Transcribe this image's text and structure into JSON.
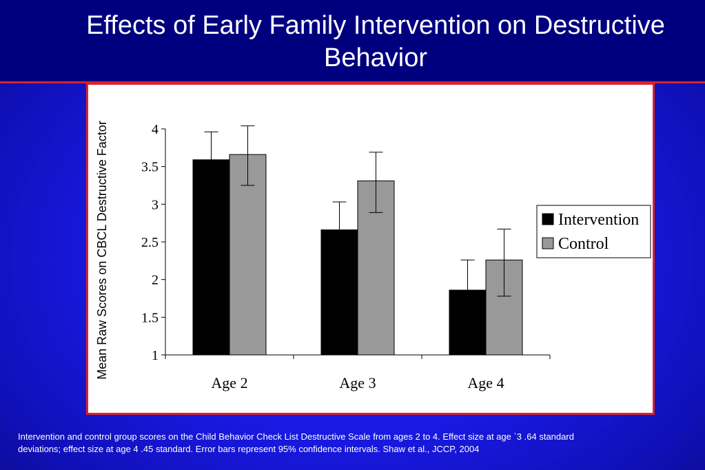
{
  "slide": {
    "title_line1": "Effects of Early Family Intervention on Destructive",
    "title_line2": "Behavior",
    "caption_line1": "Intervention and control group scores on the Child Behavior Check List Destructive Scale from ages 2 to 4. Effect size at age `3  .64 standard",
    "caption_line2": "deviations; effect size at age 4  .45 standard.  Error bars represent 95% confidence intervals.  Shaw et al., JCCP, 2004"
  },
  "colors": {
    "title_band": "#00007f",
    "background": "#1a1ae6",
    "accent_rule": "#d8232a",
    "intervention": "#000000",
    "control": "#999999"
  },
  "chart_data": {
    "type": "bar",
    "ylabel": "Mean Raw Scores on CBCL Destructive Factor",
    "xlabel": "",
    "categories": [
      "Age 2",
      "Age 3",
      "Age 4"
    ],
    "ylim": [
      1,
      4
    ],
    "yticks": [
      1,
      1.5,
      2,
      2.5,
      3,
      3.5,
      4
    ],
    "ytick_labels": [
      "1",
      "1.5",
      "2",
      "2.5",
      "3",
      "3.5",
      "4"
    ],
    "grid": false,
    "legend_position": "right",
    "series": [
      {
        "name": "Intervention",
        "color": "#000000",
        "values": [
          3.59,
          2.66,
          1.86
        ],
        "ci_low": [
          3.22,
          2.3,
          1.49
        ],
        "ci_high": [
          3.96,
          3.03,
          2.26
        ]
      },
      {
        "name": "Control",
        "color": "#999999",
        "values": [
          3.66,
          3.31,
          2.26
        ],
        "ci_low": [
          3.25,
          2.89,
          1.78
        ],
        "ci_high": [
          4.04,
          3.69,
          2.67
        ]
      }
    ]
  }
}
